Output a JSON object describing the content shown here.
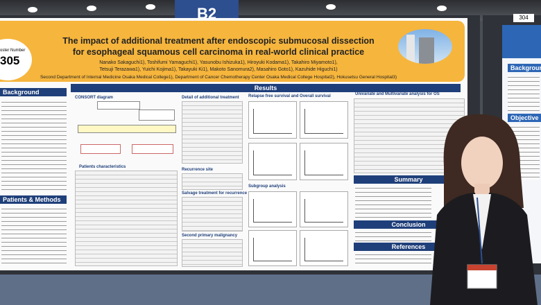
{
  "booth": "B2",
  "neighbor": {
    "number": "304",
    "headings": [
      "Background",
      "Objective"
    ]
  },
  "poster": {
    "number_label": "oster Number",
    "number": "305",
    "title": [
      "The impact of additional treatment after endoscopic submucosal dissection",
      "for esophageal squamous cell carcinoma in real-world clinical practice"
    ],
    "authors": [
      "Nanako Sakaguchi1), Toshifumi Yamaguchi1), Yasunobu Ishizuka1), Hiroyuki Kodama1), Takahiro Miyamoto1),",
      "Tetsuji Terazawa1), Yuichi Kojima1), Takayuki Ki1), Makoto Sanomura2), Masahiro Goto1), Kazuhide Higuchi1)"
    ],
    "affiliation": "Second Department of Internal Medicine Osaka Medical College1), Department of Cancer Chemotherapy Center Osaka Medical College Hospital2), Hokusetsu General Hospital3)",
    "left_headings": [
      "Background",
      "Patients & Methods"
    ],
    "results": "Results",
    "consort": "CONSORT diagram",
    "panels": [
      "Patients characteristics",
      "Detail of additional treatment",
      "Recurrence site",
      "Salvage treatment for recurrence",
      "Second primary malignancy",
      "Relapse free survival and Overall survival",
      "Subgroup analysis",
      "Univariate and Multivariate analysis for OS"
    ],
    "right_headings": [
      "Summary",
      "Conclusion",
      "References"
    ]
  }
}
